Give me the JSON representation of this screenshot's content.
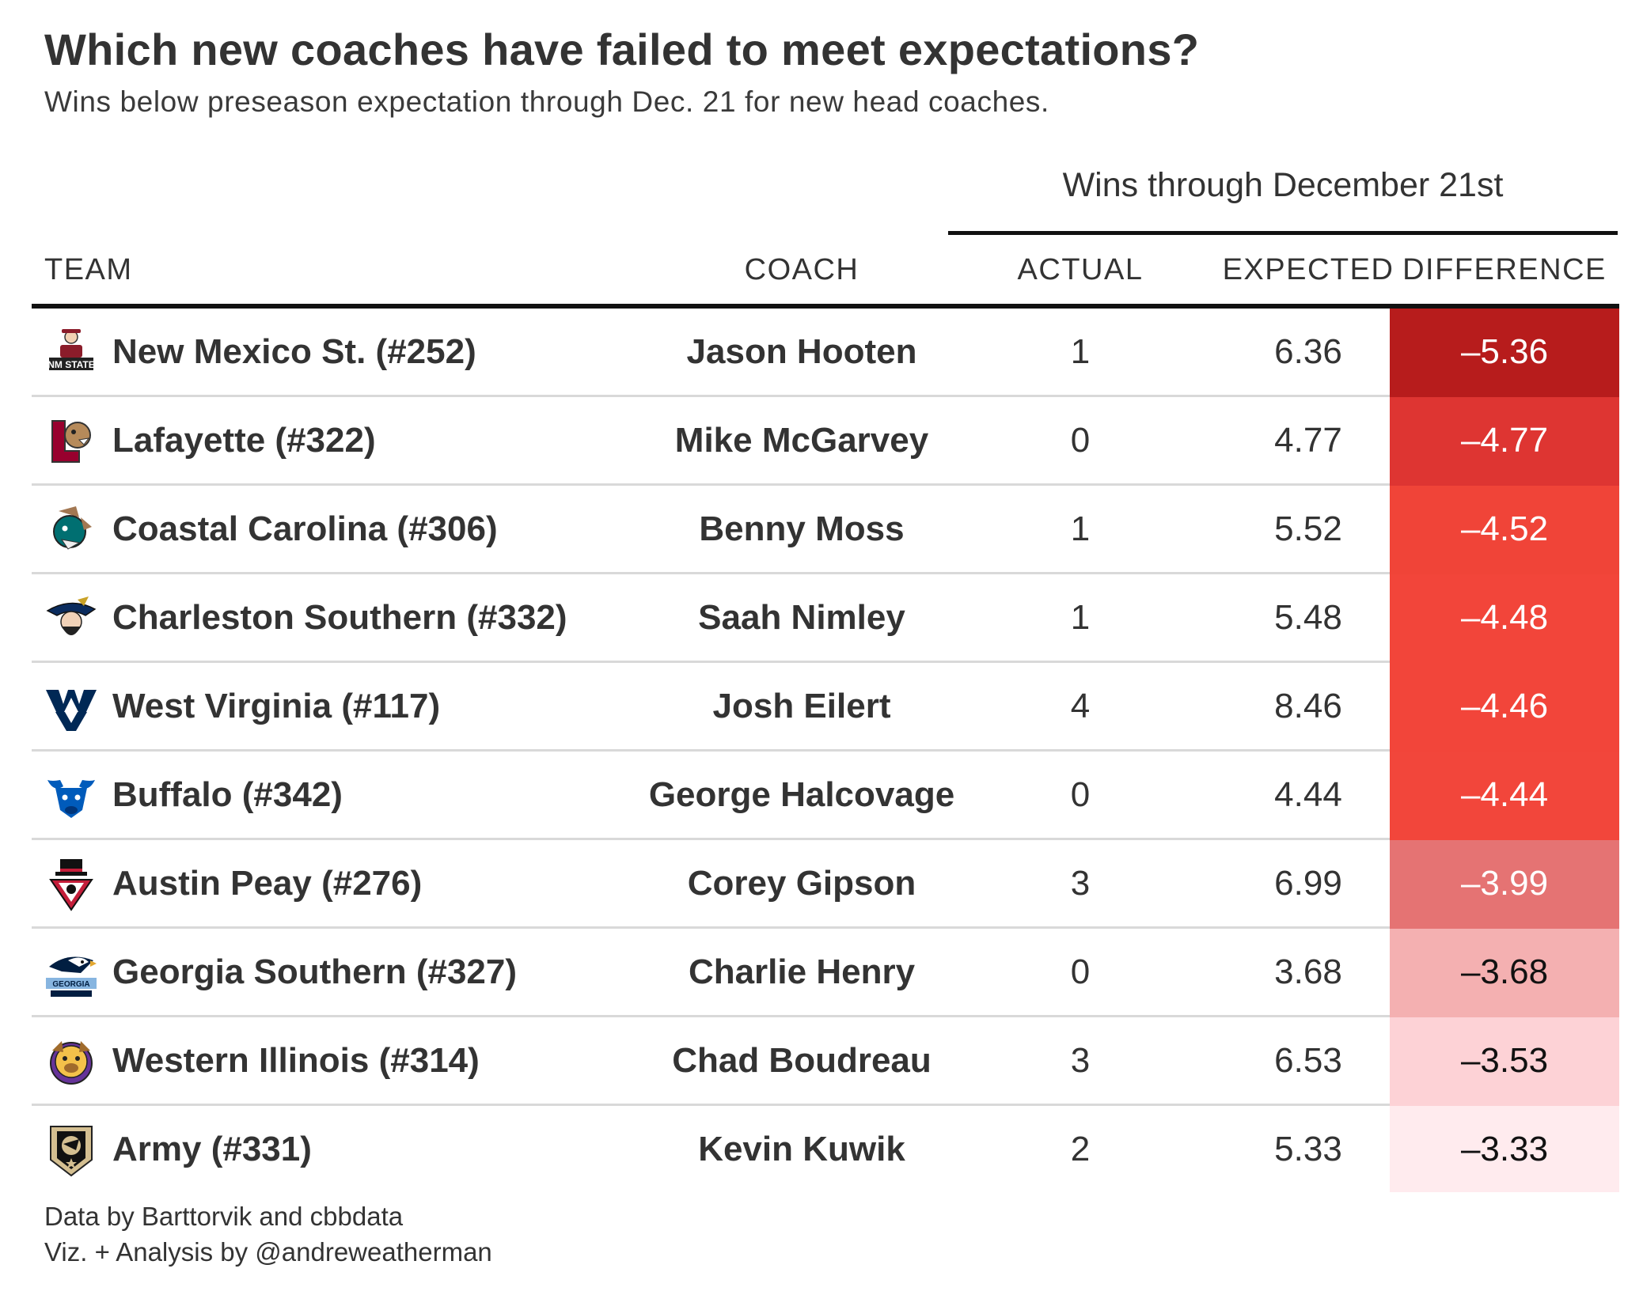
{
  "title": "Which new coaches have failed to meet expectations?",
  "subtitle": "Wins below preseason expectation through Dec. 21 for new head coaches.",
  "spanner_label": "Wins through December 21st",
  "columns": {
    "team": "TEAM",
    "coach": "COACH",
    "actual": "ACTUAL",
    "expected": "EXPECTED",
    "difference": "DIFFERENCE"
  },
  "caption": {
    "line1": "Data by Barttorvik and cbbdata",
    "line2": "Viz. + Analysis by @andreweatherman"
  },
  "chart_data": {
    "type": "table",
    "title": "Which new coaches have failed to meet expectations?",
    "subtitle": "Wins below preseason expectation through Dec. 21 for new head coaches.",
    "columns": [
      "TEAM",
      "COACH",
      "ACTUAL",
      "EXPECTED",
      "DIFFERENCE"
    ],
    "spanner": "Wins through December 21st",
    "rows": [
      {
        "team": "New Mexico St. (#252)",
        "coach": "Jason Hooten",
        "actual": "1",
        "expected": "6.36",
        "difference": "–5.36",
        "logo": "nm-state-logo",
        "fill": "#b71c1c",
        "text_color": "#ffffff"
      },
      {
        "team": "Lafayette (#322)",
        "coach": "Mike McGarvey",
        "actual": "0",
        "expected": "4.77",
        "difference": "–4.77",
        "logo": "lafayette-logo",
        "fill": "#de3532",
        "text_color": "#ffffff"
      },
      {
        "team": "Coastal Carolina (#306)",
        "coach": "Benny Moss",
        "actual": "1",
        "expected": "5.52",
        "difference": "–4.52",
        "logo": "coastal-carolina-logo",
        "fill": "#f04438",
        "text_color": "#ffffff"
      },
      {
        "team": "Charleston Southern (#332)",
        "coach": "Saah Nimley",
        "actual": "1",
        "expected": "5.48",
        "difference": "–4.48",
        "logo": "charleston-southern-logo",
        "fill": "#f2453a",
        "text_color": "#ffffff"
      },
      {
        "team": "West Virginia (#117)",
        "coach": "Josh Eilert",
        "actual": "4",
        "expected": "8.46",
        "difference": "–4.46",
        "logo": "west-virginia-logo",
        "fill": "#f2453a",
        "text_color": "#ffffff"
      },
      {
        "team": "Buffalo (#342)",
        "coach": "George Halcovage",
        "actual": "0",
        "expected": "4.44",
        "difference": "–4.44",
        "logo": "buffalo-logo",
        "fill": "#f2463b",
        "text_color": "#ffffff"
      },
      {
        "team": "Austin Peay (#276)",
        "coach": "Corey Gipson",
        "actual": "3",
        "expected": "6.99",
        "difference": "–3.99",
        "logo": "austin-peay-logo",
        "fill": "#e57373",
        "text_color": "#ffffff"
      },
      {
        "team": "Georgia Southern (#327)",
        "coach": "Charlie Henry",
        "actual": "0",
        "expected": "3.68",
        "difference": "–3.68",
        "logo": "georgia-southern-logo",
        "fill": "#f4b0b1",
        "text_color": "#111111"
      },
      {
        "team": "Western Illinois (#314)",
        "coach": "Chad Boudreau",
        "actual": "3",
        "expected": "6.53",
        "difference": "–3.53",
        "logo": "western-illinois-logo",
        "fill": "#fdd2d6",
        "text_color": "#111111"
      },
      {
        "team": "Army (#331)",
        "coach": "Kevin Kuwik",
        "actual": "2",
        "expected": "5.33",
        "difference": "–3.33",
        "logo": "army-logo",
        "fill": "#ffebee",
        "text_color": "#111111"
      }
    ]
  }
}
